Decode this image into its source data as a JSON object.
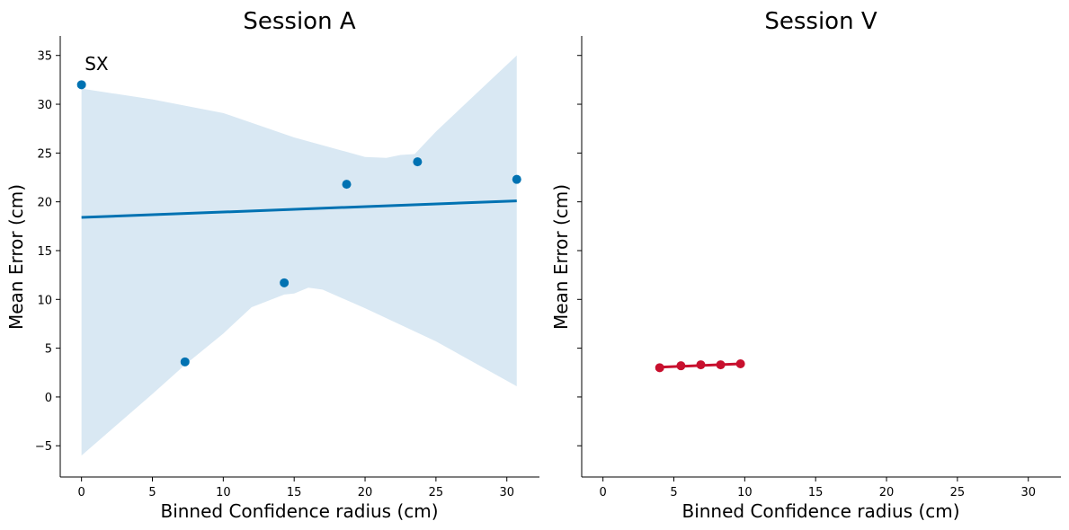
{
  "chart_data": [
    {
      "type": "scatter",
      "title": "Session A",
      "xlabel": "Binned Confidence radius (cm)",
      "ylabel": "Mean Error (cm)",
      "xlim": [
        -1.5,
        32.3
      ],
      "ylim": [
        -8.2,
        37
      ],
      "xticks": [
        0,
        5,
        10,
        15,
        20,
        25,
        30
      ],
      "yticks": [
        -5,
        0,
        5,
        10,
        15,
        20,
        25,
        30,
        35
      ],
      "ytick_labels": [
        "−5",
        "0",
        "5",
        "10",
        "15",
        "20",
        "25",
        "30",
        "35"
      ],
      "annotation": {
        "text": "SX",
        "x": 0.1,
        "y": 33.5
      },
      "series": [
        {
          "color": "#0072b2",
          "points": [
            {
              "x": 0,
              "y": 32
            },
            {
              "x": 7.3,
              "y": 3.6
            },
            {
              "x": 14.3,
              "y": 11.7
            },
            {
              "x": 18.7,
              "y": 21.8
            },
            {
              "x": 23.7,
              "y": 24.1
            },
            {
              "x": 30.7,
              "y": 22.3
            }
          ],
          "fit": {
            "x": [
              0,
              30.7
            ],
            "y": [
              18.4,
              20.1
            ]
          },
          "ci_band": {
            "color": "#d9e8f3",
            "upper": [
              [
                0,
                31.6
              ],
              [
                5,
                30.5
              ],
              [
                10,
                29.1
              ],
              [
                15,
                26.6
              ],
              [
                20,
                24.6
              ],
              [
                21.5,
                24.5
              ],
              [
                22.5,
                24.8
              ],
              [
                23.5,
                24.9
              ],
              [
                25,
                27.2
              ],
              [
                30.7,
                35
              ]
            ],
            "lower": [
              [
                0,
                -6
              ],
              [
                5,
                0.3
              ],
              [
                7.3,
                3.3
              ],
              [
                10,
                6.5
              ],
              [
                12,
                9.2
              ],
              [
                14.3,
                10.5
              ],
              [
                15,
                10.6
              ],
              [
                16,
                11.2
              ],
              [
                17,
                11
              ],
              [
                20,
                9.1
              ],
              [
                25,
                5.7
              ],
              [
                30.7,
                1.1
              ]
            ]
          }
        }
      ]
    },
    {
      "type": "line",
      "title": "Session V",
      "xlabel": "Binned Confidence radius (cm)",
      "ylabel": "Mean Error (cm)",
      "xlim": [
        -1.5,
        32.3
      ],
      "ylim": [
        -8.2,
        37
      ],
      "xticks": [
        0,
        5,
        10,
        15,
        20,
        25,
        30
      ],
      "yticks": [
        -5,
        0,
        5,
        10,
        15,
        20,
        25,
        30,
        35
      ],
      "shared_y": true,
      "series": [
        {
          "color": "#c8102e",
          "points": [
            {
              "x": 4.0,
              "y": 3.0
            },
            {
              "x": 5.5,
              "y": 3.2
            },
            {
              "x": 6.9,
              "y": 3.3
            },
            {
              "x": 8.3,
              "y": 3.3
            },
            {
              "x": 9.7,
              "y": 3.4
            }
          ],
          "fit": {
            "x": [
              4.0,
              9.7
            ],
            "y": [
              3.05,
              3.4
            ]
          }
        }
      ]
    }
  ]
}
